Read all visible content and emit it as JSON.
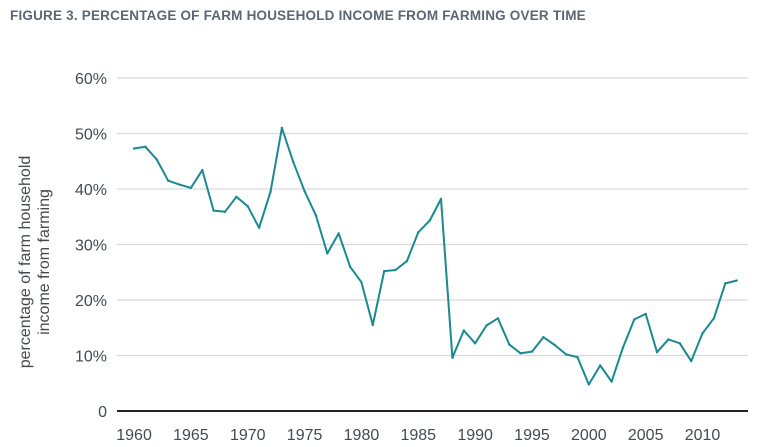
{
  "figure": {
    "title": "FIGURE 3. PERCENTAGE OF FARM HOUSEHOLD INCOME FROM FARMING OVER TIME"
  },
  "colors": {
    "line": "#1a8a90",
    "grid": "#d9d9d9",
    "axis": "#222222",
    "text": "#444a50",
    "title": "#5d6670"
  },
  "chart_data": {
    "type": "line",
    "title": "FIGURE 3. PERCENTAGE OF FARM HOUSEHOLD INCOME FROM FARMING OVER TIME",
    "ylabel_lines": [
      "percentage of farm household",
      "income from farming"
    ],
    "xlabel": "",
    "xlim": [
      1958.5,
      2014
    ],
    "ylim": [
      0,
      60
    ],
    "x_ticks": [
      1960,
      1965,
      1970,
      1975,
      1980,
      1985,
      1990,
      1995,
      2000,
      2005,
      2010
    ],
    "x_tick_labels": [
      "1960",
      "1965",
      "1970",
      "1975",
      "1980",
      "1985",
      "1990",
      "1995",
      "2000",
      "2005",
      "2010"
    ],
    "y_ticks": [
      0,
      10,
      20,
      30,
      40,
      50,
      60
    ],
    "y_tick_labels": [
      "0",
      "10%",
      "20%",
      "30%",
      "40%",
      "50%",
      "60%"
    ],
    "grid": "horizontal",
    "series": [
      {
        "x": [
          1960,
          1961,
          1962,
          1963,
          1964,
          1965,
          1966,
          1967,
          1968,
          1969,
          1970,
          1971,
          1972,
          1973,
          1974,
          1975,
          1976,
          1977,
          1978,
          1979,
          1980,
          1981,
          1982,
          1983,
          1984,
          1985,
          1986,
          1987,
          1988,
          1989,
          1990,
          1991,
          1992,
          1993,
          1994,
          1995,
          1996,
          1997,
          1998,
          1999,
          2000,
          2001,
          2002,
          2003,
          2004,
          2005,
          2006,
          2007,
          2008,
          2009,
          2010,
          2011,
          2012,
          2013
        ],
        "values": [
          47.3,
          47.6,
          45.3,
          41.5,
          40.8,
          40.2,
          43.4,
          36.1,
          35.9,
          38.6,
          36.9,
          33.0,
          39.5,
          51.0,
          44.9,
          39.6,
          35.2,
          28.4,
          32.0,
          26.0,
          23.2,
          15.5,
          25.2,
          25.4,
          27.0,
          32.2,
          34.3,
          38.2,
          9.6,
          14.5,
          12.2,
          15.4,
          16.7,
          12.0,
          10.4,
          10.7,
          13.3,
          11.9,
          10.2,
          9.7,
          4.8,
          8.2,
          5.3,
          11.4,
          16.5,
          17.5,
          10.6,
          12.9,
          12.2,
          9.0,
          14.0,
          16.7,
          23.0,
          23.5
        ]
      }
    ]
  }
}
